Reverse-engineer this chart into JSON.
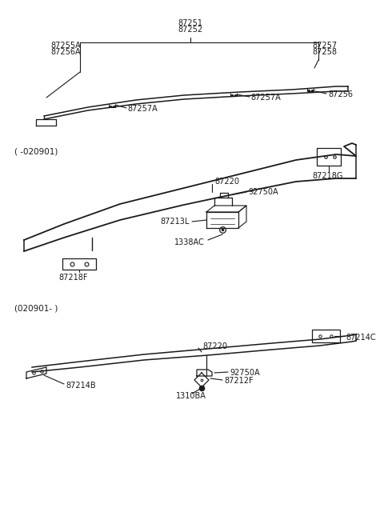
{
  "bg_color": "#ffffff",
  "fig_width": 4.8,
  "fig_height": 6.55,
  "dpi": 100,
  "lc": "#1a1a1a",
  "tc": "#1a1a1a",
  "fs": 7.0,
  "sections": {
    "s1_labels": [
      "87251",
      "87252",
      "87255A",
      "87256A",
      "87257",
      "87258",
      "87256",
      "87257A",
      "87257A"
    ],
    "s2_label": "( -020901)",
    "s2_parts": [
      "87220",
      "87218G",
      "92750A",
      "87213L",
      "1338AC",
      "87218F"
    ],
    "s3_label": "(020901- )",
    "s3_parts": [
      "87220",
      "87214C",
      "92750A",
      "87212F",
      "1310BA",
      "87214B"
    ]
  }
}
